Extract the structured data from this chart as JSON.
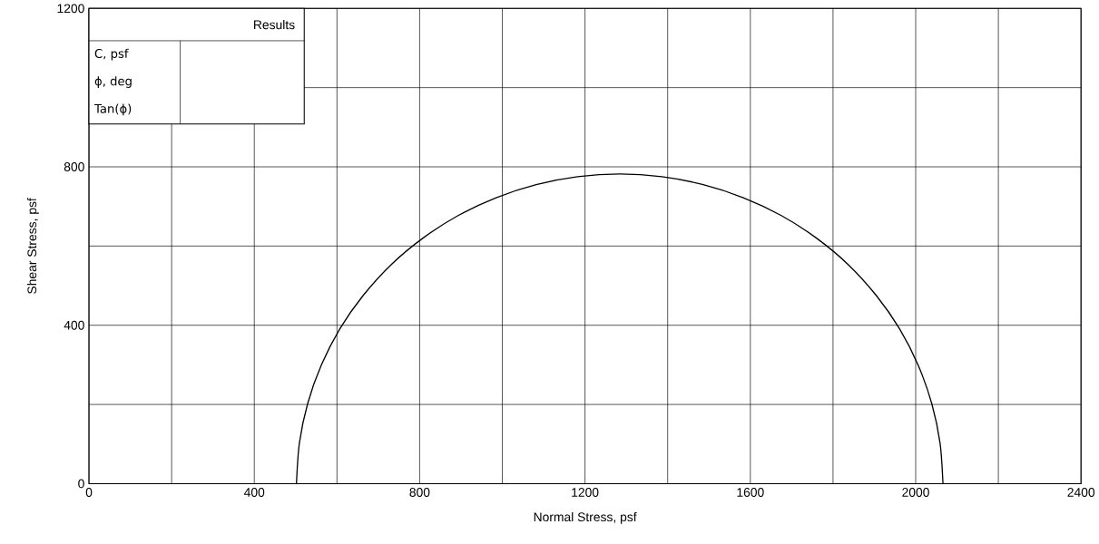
{
  "chart_data": {
    "type": "line",
    "xlabel": "Normal Stress, psf",
    "ylabel": "Shear Stress, psf",
    "xlim": [
      0,
      2400
    ],
    "ylim": [
      0,
      1200
    ],
    "xticks": [
      0,
      {
        "value": 200,
        "label": null
      },
      400,
      {
        "value": 600,
        "label": null
      },
      800,
      {
        "value": 1000,
        "label": null
      },
      1200,
      {
        "value": 1400,
        "label": null
      },
      1600,
      {
        "value": 1800,
        "label": null
      },
      2000,
      {
        "value": 2200,
        "label": null
      },
      2400
    ],
    "yticks": [
      0,
      {
        "value": 200,
        "label": null
      },
      400,
      {
        "value": 600,
        "label": null
      },
      800,
      {
        "value": 1000,
        "label": null
      },
      1200
    ],
    "grid": true,
    "marker": "none",
    "line_style": "solid",
    "series": [
      {
        "color": "#000000",
        "x": [
          502,
          509,
          529,
          562,
          607,
          664,
          731,
          808,
          893,
          985,
          1082,
          1182,
          1284,
          1386,
          1486,
          1583,
          1675,
          1760,
          1837,
          1904,
          1961,
          2006,
          2039,
          2059,
          2066
        ],
        "values": [
          0,
          102,
          202,
          299,
          391,
          476,
          553,
          620,
          677,
          722,
          755,
          775,
          782,
          775,
          755,
          722,
          677,
          620,
          553,
          476,
          391,
          299,
          202,
          102,
          0
        ]
      }
    ],
    "annotations": [
      "Results",
      "C, psf",
      "ϕ, deg",
      "Tan(ϕ)"
    ]
  }
}
